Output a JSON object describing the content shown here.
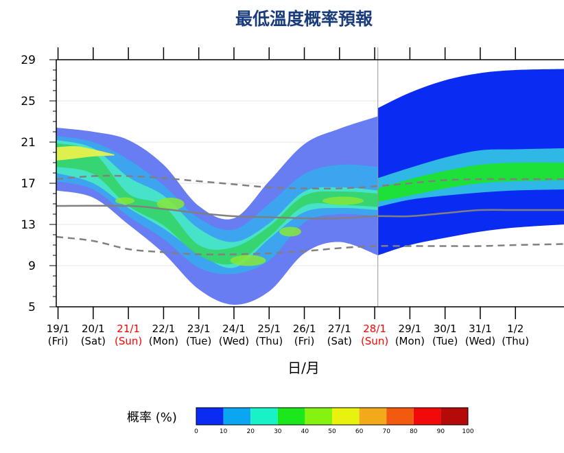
{
  "title": "最低溫度概率預報",
  "xlabel": "日/月",
  "legend_label": "概率 (%)",
  "colors": {
    "title": "#1a3c7c",
    "axis": "#000000",
    "weekend_date": "#ff0000",
    "median_line": "#808080",
    "divider": "#999999"
  },
  "chart_data": {
    "type": "area",
    "title": "最低溫度概率預報",
    "xlabel": "日/月",
    "ylabel": "",
    "ylim": [
      5,
      29
    ],
    "yticks": [
      5,
      9,
      13,
      17,
      21,
      25,
      29
    ],
    "x_dates": [
      {
        "date": "19/1",
        "day": "(Fri)",
        "weekend": false
      },
      {
        "date": "20/1",
        "day": "(Sat)",
        "weekend": false
      },
      {
        "date": "21/1",
        "day": "(Sun)",
        "weekend": true
      },
      {
        "date": "22/1",
        "day": "(Mon)",
        "weekend": false
      },
      {
        "date": "23/1",
        "day": "(Tue)",
        "weekend": false
      },
      {
        "date": "24/1",
        "day": "(Wed)",
        "weekend": false
      },
      {
        "date": "25/1",
        "day": "(Thu)",
        "weekend": false
      },
      {
        "date": "26/1",
        "day": "(Fri)",
        "weekend": false
      },
      {
        "date": "27/1",
        "day": "(Sat)",
        "weekend": false
      },
      {
        "date": "28/1",
        "day": "(Sun)",
        "weekend": true
      },
      {
        "date": "29/1",
        "day": "(Mon)",
        "weekend": false
      },
      {
        "date": "30/1",
        "day": "(Tue)",
        "weekend": false
      },
      {
        "date": "31/1",
        "day": "(Wed)",
        "weekend": false
      },
      {
        "date": "1/2",
        "day": "(Thu)",
        "weekend": false
      }
    ],
    "x_range": [
      -0.05,
      14.38
    ],
    "divider_at": 9.09,
    "median": {
      "x": [
        -0.05,
        2,
        3,
        4,
        5,
        6,
        7,
        8,
        9,
        10,
        11,
        12,
        13,
        14.38
      ],
      "y": [
        14.8,
        14.8,
        14.5,
        14.1,
        13.8,
        13.7,
        13.6,
        13.6,
        13.8,
        13.8,
        14.1,
        14.4,
        14.4,
        14.4
      ]
    },
    "upper_dashed": {
      "x": [
        -0.05,
        1,
        2,
        3,
        4,
        5,
        6,
        7,
        8,
        9,
        10,
        11,
        12,
        13,
        14.38
      ],
      "y": [
        17.4,
        17.7,
        17.7,
        17.5,
        17.2,
        16.9,
        16.6,
        16.5,
        16.5,
        16.7,
        17.0,
        17.3,
        17.4,
        17.4,
        17.4
      ]
    },
    "lower_dashed": {
      "x": [
        -0.05,
        1,
        2,
        3,
        4,
        5,
        6,
        7,
        8,
        9,
        10,
        11,
        12,
        13,
        14.38
      ],
      "y": [
        11.8,
        11.4,
        10.6,
        10.3,
        10.1,
        10.1,
        10.2,
        10.4,
        10.7,
        10.9,
        10.9,
        10.9,
        10.9,
        11.0,
        11.1
      ]
    },
    "probability_bands": [
      {
        "range": "0-10",
        "color": "#5a72f0",
        "x": [
          -0.05,
          1,
          2,
          3,
          4,
          5,
          6,
          7,
          8,
          9.09
        ],
        "upper": [
          22.4,
          22.0,
          21.2,
          18.8,
          14.8,
          13.6,
          17.2,
          20.8,
          22.3,
          23.5
        ],
        "lower": [
          16.3,
          15.6,
          13.0,
          10.2,
          6.7,
          5.2,
          6.5,
          10.2,
          11.3,
          10.0
        ]
      },
      {
        "range": "10-20",
        "color": "#3aa8f0",
        "x": [
          -0.05,
          1,
          2,
          3,
          4,
          5,
          6,
          7,
          8,
          9.09
        ],
        "upper": [
          21.6,
          21.0,
          19.3,
          16.8,
          13.6,
          12.5,
          15.0,
          17.9,
          18.8,
          18.6
        ],
        "lower": [
          17.2,
          16.4,
          13.8,
          11.6,
          8.8,
          8.2,
          9.5,
          13.2,
          14.0,
          13.8
        ]
      },
      {
        "range": "20-30",
        "color": "#47e8c6",
        "x": [
          -0.05,
          1,
          2,
          3,
          4,
          5,
          6,
          7,
          8,
          9.09
        ],
        "upper": [
          21.2,
          20.4,
          17.6,
          15.8,
          12.6,
          11.3,
          13.1,
          16.2,
          16.6,
          16.3
        ],
        "lower": [
          18.0,
          17.0,
          14.6,
          12.6,
          10.2,
          8.8,
          11.6,
          14.2,
          14.6,
          14.4
        ]
      },
      {
        "range": "30-40",
        "color": "#36d26a",
        "x": [
          -0.05,
          1,
          2,
          3,
          4,
          5,
          6,
          7,
          8,
          9.09
        ],
        "upper": [
          20.9,
          20.0,
          16.0,
          14.8,
          11.0,
          10.8,
          12.8,
          15.8,
          16.2,
          16.0
        ],
        "lower": [
          18.6,
          17.9,
          14.8,
          12.9,
          10.0,
          9.2,
          11.8,
          14.8,
          14.9,
          14.7
        ]
      },
      {
        "range": "50-60",
        "color": "#ecf24a",
        "x": [
          -0.05,
          0.5,
          1,
          1.6
        ],
        "upper": [
          20.5,
          20.6,
          20.3,
          19.8
        ],
        "lower": [
          19.2,
          19.4,
          19.6,
          19.7
        ]
      }
    ],
    "extended_band_bluish": {
      "x": [
        9.09,
        10,
        11,
        12,
        13,
        14.38
      ],
      "upper": [
        24.3,
        25.8,
        27.0,
        27.7,
        28.0,
        28.1
      ],
      "lower": [
        10.0,
        11.0,
        11.7,
        12.3,
        12.7,
        13.0
      ]
    },
    "extended_band_cyan": {
      "x": [
        9.09,
        10,
        11,
        12,
        13,
        14.38
      ],
      "upper": [
        17.5,
        18.5,
        19.5,
        20.2,
        20.3,
        20.4
      ],
      "lower": [
        14.7,
        15.4,
        15.8,
        16.1,
        16.3,
        16.4
      ]
    },
    "extended_band_green": {
      "x": [
        9.09,
        10,
        11,
        12,
        13,
        14.38
      ],
      "upper": [
        16.5,
        17.4,
        18.2,
        18.8,
        19.0,
        19.0
      ],
      "lower": [
        15.2,
        15.8,
        16.5,
        17.0,
        17.2,
        17.3
      ]
    },
    "legend": {
      "bins": [
        "#0a2cf2",
        "#0aa6f2",
        "#19f2c6",
        "#1ae81a",
        "#86f20f",
        "#e8f20f",
        "#f2aa1a",
        "#f25a0f",
        "#f20a0a",
        "#b40a0a"
      ],
      "ticks": [
        "0",
        "10",
        "20",
        "30",
        "40",
        "50",
        "60",
        "70",
        "80",
        "90",
        "100"
      ]
    }
  }
}
